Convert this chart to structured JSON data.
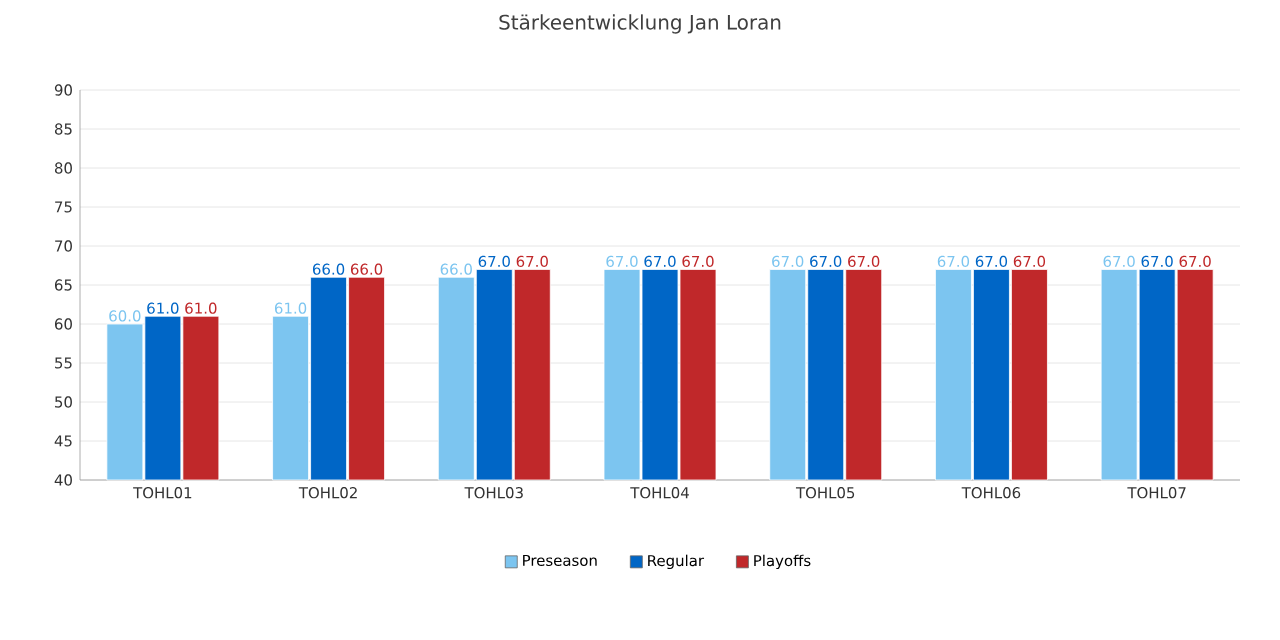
{
  "chart_data": {
    "type": "bar",
    "title": "Stärkeentwicklung Jan Loran",
    "categories": [
      "TOHL01",
      "TOHL02",
      "TOHL03",
      "TOHL04",
      "TOHL05",
      "TOHL06",
      "TOHL07"
    ],
    "series": [
      {
        "name": "Preseason",
        "color": "#7cc5f0",
        "values": [
          60,
          61,
          66,
          67,
          67,
          67,
          67
        ],
        "value_labels": [
          "60.0",
          "61.0",
          "66.0",
          "67.0",
          "67.0",
          "67.0",
          "67.0"
        ]
      },
      {
        "name": "Regular",
        "color": "#0066c6",
        "values": [
          61,
          66,
          67,
          67,
          67,
          67,
          67
        ],
        "value_labels": [
          "61.0",
          "66.0",
          "67.0",
          "67.0",
          "67.0",
          "67.0",
          "67.0"
        ]
      },
      {
        "name": "Playoffs",
        "color": "#c0282a",
        "values": [
          61,
          66,
          67,
          67,
          67,
          67,
          67
        ],
        "value_labels": [
          "61.0",
          "66.0",
          "67.0",
          "67.0",
          "67.0",
          "67.0",
          "67.0"
        ]
      }
    ],
    "ylim": [
      40,
      90
    ],
    "yticks": [
      40,
      45,
      50,
      55,
      60,
      65,
      70,
      75,
      80,
      85,
      90
    ],
    "grid": "y",
    "legend": "bottom"
  }
}
